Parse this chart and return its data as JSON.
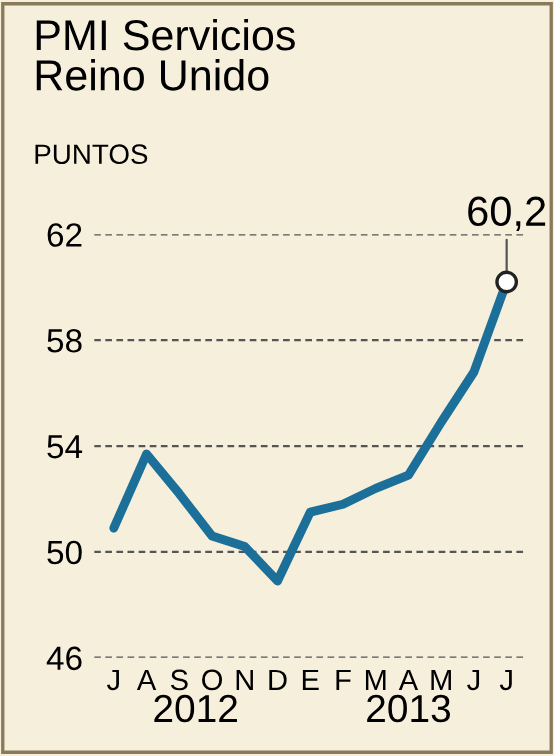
{
  "chart_data": {
    "type": "line",
    "title": "PMI Servicios\nReino Unido",
    "ylabel": "PUNTOS",
    "categories": [
      "J",
      "A",
      "S",
      "O",
      "N",
      "D",
      "E",
      "F",
      "M",
      "A",
      "M",
      "J",
      "J"
    ],
    "series": [
      {
        "color": "#1b6f99",
        "values": [
          50.9,
          53.7,
          52.2,
          50.6,
          50.2,
          48.9,
          51.5,
          51.8,
          52.4,
          52.9,
          54.9,
          56.8,
          60.2
        ]
      }
    ],
    "ylim": [
      46,
      62
    ],
    "yticks": [
      46,
      50,
      54,
      58,
      62
    ],
    "grid": "y",
    "marker": "none",
    "annotations": [
      "60,2",
      "2012",
      "2013"
    ]
  }
}
